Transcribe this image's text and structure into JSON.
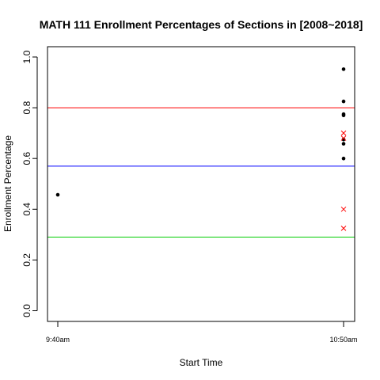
{
  "chart_data": {
    "type": "scatter",
    "title": "MATH 111 Enrollment Percentages of Sections in [2008~2018]",
    "xlabel": "Start Time",
    "ylabel": "Enrollment Percentage",
    "x_categories": [
      "9:40am",
      "10:50am"
    ],
    "ylim": [
      0.0,
      1.0
    ],
    "y_ticks": [
      "0.0",
      "0.2",
      "0.4",
      "0.6",
      "0.8",
      "1.0"
    ],
    "grid": false,
    "legend": "none",
    "series": [
      {
        "marker": "dot",
        "color": "#000000",
        "points": [
          {
            "x": "9:40am",
            "y": 0.457
          },
          {
            "x": "10:50am",
            "y": 0.952
          },
          {
            "x": "10:50am",
            "y": 0.825
          },
          {
            "x": "10:50am",
            "y": 0.775
          },
          {
            "x": "10:50am",
            "y": 0.77
          },
          {
            "x": "10:50am",
            "y": 0.675
          },
          {
            "x": "10:50am",
            "y": 0.658
          },
          {
            "x": "10:50am",
            "y": 0.6
          }
        ]
      },
      {
        "marker": "cross",
        "color": "#ff0000",
        "points": [
          {
            "x": "10:50am",
            "y": 0.7
          },
          {
            "x": "10:50am",
            "y": 0.68
          },
          {
            "x": "10:50am",
            "y": 0.4
          },
          {
            "x": "10:50am",
            "y": 0.325
          }
        ]
      }
    ],
    "reference_lines": [
      {
        "y": 0.8,
        "color": "#ff0000"
      },
      {
        "y": 0.57,
        "color": "#0000ff"
      },
      {
        "y": 0.29,
        "color": "#00cc00"
      }
    ]
  }
}
